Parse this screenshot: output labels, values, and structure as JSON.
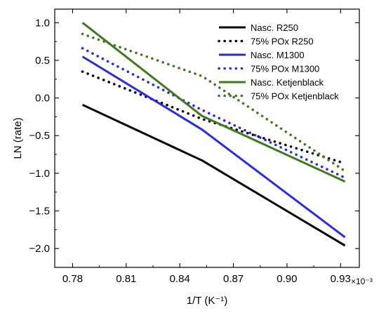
{
  "chart_data": {
    "type": "line",
    "xlabel": "1/T (K⁻¹)",
    "ylabel": "LN (rate)",
    "x_multiplier_label": "×10⁻³",
    "xlim": [
      0.77,
      0.9405
    ],
    "ylim": [
      -2.25,
      1.18
    ],
    "x_ticks": [
      0.78,
      0.81,
      0.84,
      0.87,
      0.9,
      0.93
    ],
    "x_tick_labels": [
      "0.78",
      "0.81",
      "0.84",
      "0.87",
      "0.90",
      "0.93"
    ],
    "y_ticks": [
      1.0,
      0.5,
      0.0,
      -0.5,
      -1.0,
      -1.5,
      -2.0
    ],
    "y_tick_labels": [
      "1.0",
      "0.5",
      "0.0",
      "−0.5",
      "−1.0",
      "−1.5",
      "−2.0"
    ],
    "grid": false,
    "legend_position": "top-right",
    "series": [
      {
        "name": "Nasc. R250",
        "color": "#000000",
        "dashed": false,
        "x": [
          0.7855,
          0.8525,
          0.9325
        ],
        "y": [
          -0.09,
          -0.83,
          -1.96
        ]
      },
      {
        "name": "75% POx R250",
        "color": "#000000",
        "dashed": true,
        "x": [
          0.7855,
          0.8525,
          0.9325
        ],
        "y": [
          0.35,
          -0.28,
          -0.87
        ]
      },
      {
        "name": "Nasc. M1300",
        "color": "#2a2ae0",
        "dashed": false,
        "x": [
          0.7855,
          0.8525,
          0.9325
        ],
        "y": [
          0.55,
          -0.42,
          -1.85
        ]
      },
      {
        "name": "75% POx M1300",
        "color": "#2a2ae0",
        "dashed": true,
        "x": [
          0.7855,
          0.8525,
          0.9325
        ],
        "y": [
          0.66,
          -0.16,
          -1.06
        ]
      },
      {
        "name": "Nasc. Ketjenblack",
        "color": "#3d7a1e",
        "dashed": false,
        "x": [
          0.7855,
          0.8525,
          0.9325
        ],
        "y": [
          1.0,
          -0.24,
          -1.11
        ]
      },
      {
        "name": "75% POx Ketjenblack",
        "color": "#3d7a1e",
        "dashed": true,
        "x": [
          0.7855,
          0.8525,
          0.9325
        ],
        "y": [
          0.85,
          0.29,
          -0.97
        ]
      }
    ]
  }
}
